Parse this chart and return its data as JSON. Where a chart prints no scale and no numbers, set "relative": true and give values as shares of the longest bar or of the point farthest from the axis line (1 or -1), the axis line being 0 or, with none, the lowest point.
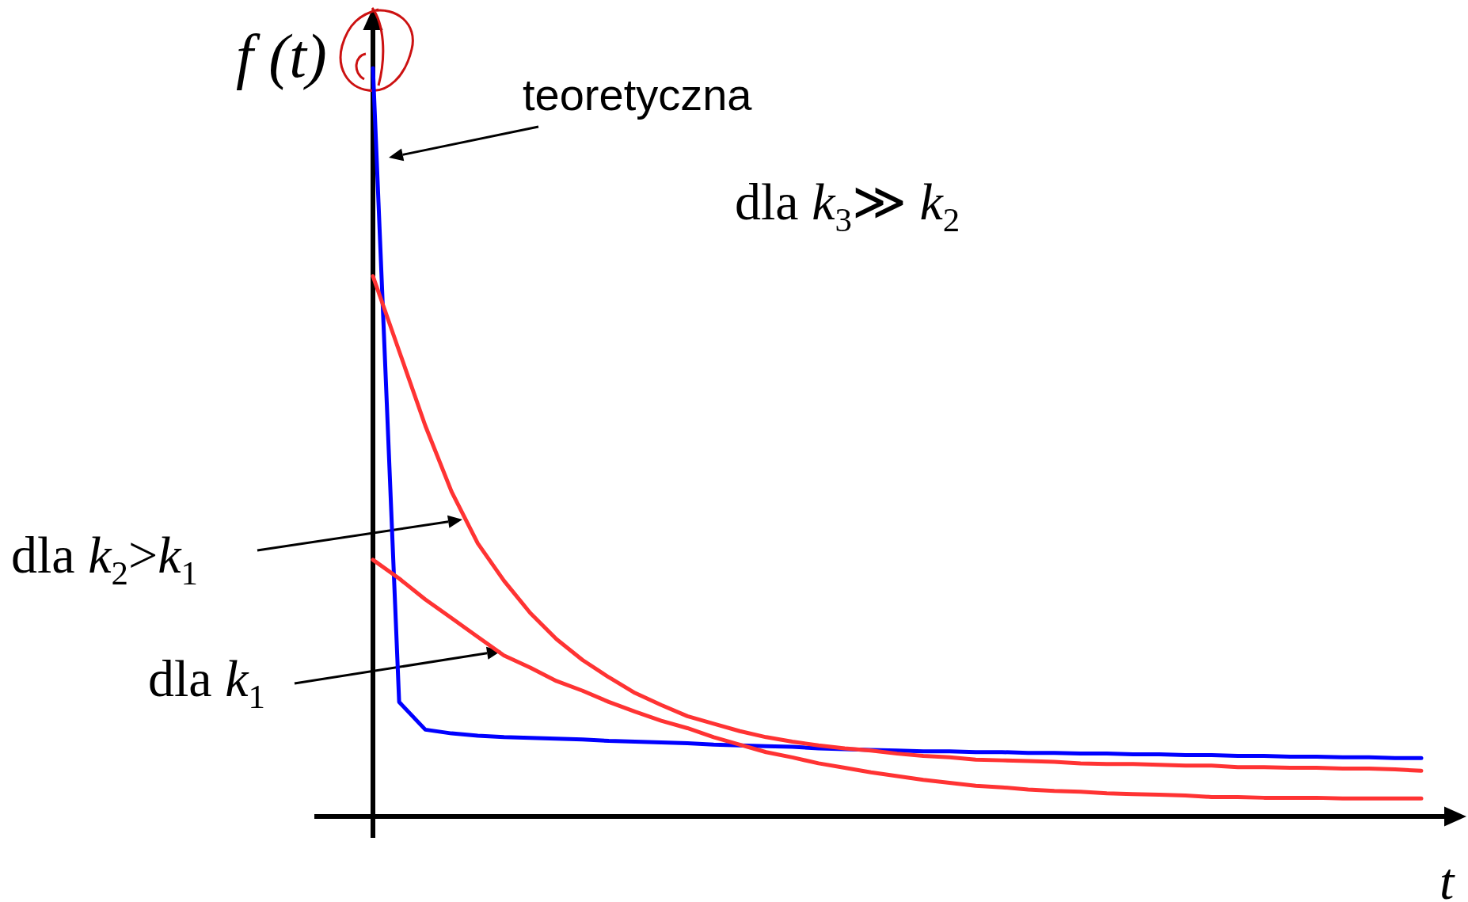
{
  "chart_data": {
    "type": "line",
    "relative": true,
    "marker": "none",
    "grid": false,
    "ylabel": "f (t)",
    "xlabel": "t",
    "annotations": [
      "teoretyczna",
      "dla k$_{3}$≫ k$_{2}$",
      "dla k$_{2}$>k$_{1}$",
      "dla k$_{1}$"
    ],
    "categories": [
      null,
      null,
      null,
      null,
      null,
      null,
      null,
      null,
      null,
      null,
      null,
      null,
      null,
      null,
      null,
      null,
      null,
      null,
      null,
      null,
      null,
      null,
      null,
      null,
      null,
      null,
      null,
      null,
      null,
      null,
      null,
      null,
      null,
      null,
      null,
      null,
      null,
      null,
      null,
      null,
      null
    ],
    "series": [
      {
        "color": "#0000ff",
        "values": [
          1.0,
          0.153,
          0.116,
          0.111,
          0.108,
          0.106,
          0.105,
          0.104,
          0.103,
          0.101,
          0.1,
          0.099,
          0.098,
          0.096,
          0.095,
          0.094,
          0.093,
          0.091,
          0.09,
          0.089,
          0.088,
          0.087,
          0.087,
          0.086,
          0.086,
          0.085,
          0.085,
          0.084,
          0.084,
          0.083,
          0.083,
          0.082,
          0.082,
          0.081,
          0.081,
          0.08,
          0.08,
          0.079,
          0.079,
          0.078,
          0.078
        ]
      },
      {
        "color": "#ff3333",
        "values": [
          0.722,
          0.622,
          0.522,
          0.434,
          0.365,
          0.315,
          0.272,
          0.237,
          0.209,
          0.186,
          0.165,
          0.149,
          0.134,
          0.124,
          0.114,
          0.106,
          0.1,
          0.095,
          0.091,
          0.088,
          0.084,
          0.081,
          0.079,
          0.076,
          0.075,
          0.074,
          0.073,
          0.071,
          0.07,
          0.07,
          0.069,
          0.068,
          0.068,
          0.066,
          0.066,
          0.065,
          0.065,
          0.064,
          0.064,
          0.063,
          0.061
        ]
      },
      {
        "color": "#ff3333",
        "values": [
          0.343,
          0.318,
          0.29,
          0.265,
          0.24,
          0.215,
          0.199,
          0.181,
          0.168,
          0.153,
          0.14,
          0.128,
          0.118,
          0.106,
          0.096,
          0.086,
          0.079,
          0.071,
          0.065,
          0.059,
          0.054,
          0.049,
          0.045,
          0.041,
          0.039,
          0.036,
          0.034,
          0.033,
          0.031,
          0.03,
          0.029,
          0.028,
          0.026,
          0.026,
          0.025,
          0.025,
          0.025,
          0.024,
          0.024,
          0.024,
          0.024
        ]
      }
    ]
  }
}
